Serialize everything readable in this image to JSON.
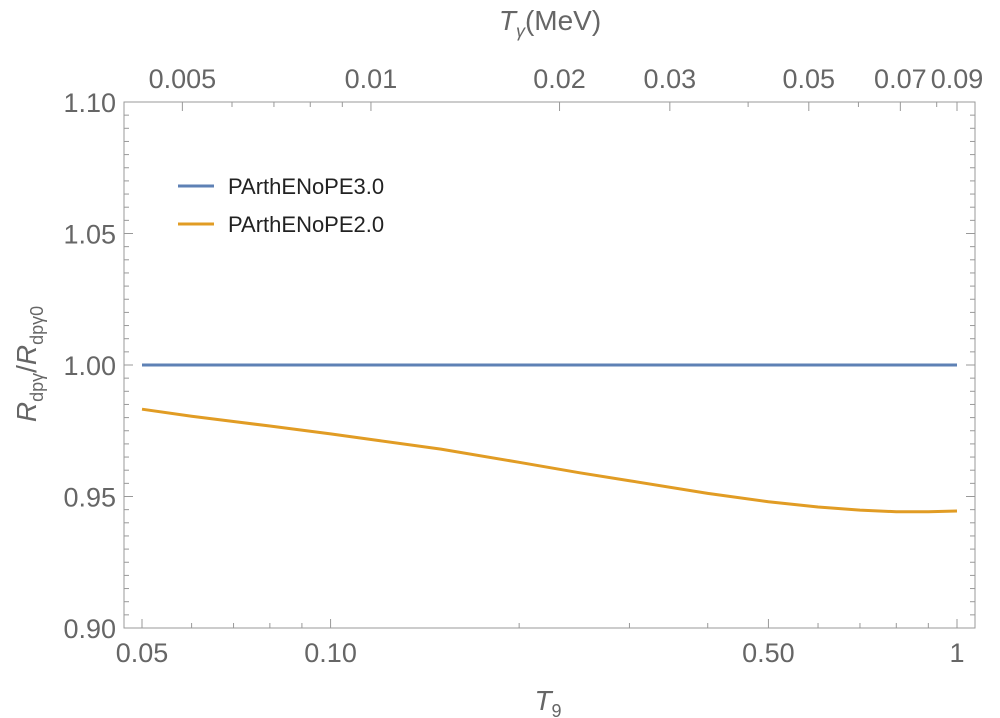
{
  "chart_data": {
    "type": "line",
    "title": "",
    "x_scale": "log",
    "xlim": [
      0.05,
      1
    ],
    "ylim": [
      0.9,
      1.1
    ],
    "xlabel": {
      "main": "T",
      "sub": "9"
    },
    "ylabel": {
      "num_main": "R",
      "num_sub": "dpγ",
      "sep": "/",
      "den_main": "R",
      "den_sub": "dpγ0"
    },
    "top_axis_label": {
      "main": "T",
      "sub": "γ",
      "unit": "(MeV)"
    },
    "x_ticks": [
      {
        "value": 0.05,
        "label": "0.05"
      },
      {
        "value": 0.1,
        "label": "0.10"
      },
      {
        "value": 0.5,
        "label": "0.50"
      },
      {
        "value": 1,
        "label": "1"
      }
    ],
    "y_ticks": [
      {
        "value": 0.9,
        "label": "0.90"
      },
      {
        "value": 0.95,
        "label": "0.95"
      },
      {
        "value": 1.0,
        "label": "1.00"
      },
      {
        "value": 1.05,
        "label": "1.05"
      },
      {
        "value": 1.1,
        "label": "1.10"
      }
    ],
    "top_ticks": [
      {
        "label": "0.005",
        "T9": 0.058
      },
      {
        "label": "0.01",
        "T9": 0.116
      },
      {
        "label": "0.02",
        "T9": 0.232
      },
      {
        "label": "0.03",
        "T9": 0.348
      },
      {
        "label": "0.05",
        "T9": 0.58
      },
      {
        "label": "0.07",
        "T9": 0.812
      },
      {
        "label": "0.09",
        "T9": 1.0
      }
    ],
    "legend_position": "top-left",
    "grid": false,
    "series": [
      {
        "name": "PArthENoPE3.0",
        "color": "#5E81B5",
        "x": [
          0.05,
          1
        ],
        "y": [
          1.0,
          1.0
        ]
      },
      {
        "name": "PArthENoPE2.0",
        "color": "#E19C24",
        "x": [
          0.05,
          0.06,
          0.07,
          0.08,
          0.1,
          0.12,
          0.15,
          0.2,
          0.25,
          0.3,
          0.4,
          0.5,
          0.6,
          0.7,
          0.8,
          0.9,
          1.0
        ],
        "y": [
          0.9832,
          0.9805,
          0.9785,
          0.9768,
          0.9738,
          0.9712,
          0.968,
          0.963,
          0.959,
          0.956,
          0.9512,
          0.948,
          0.946,
          0.9448,
          0.9442,
          0.9442,
          0.9445
        ]
      }
    ]
  }
}
